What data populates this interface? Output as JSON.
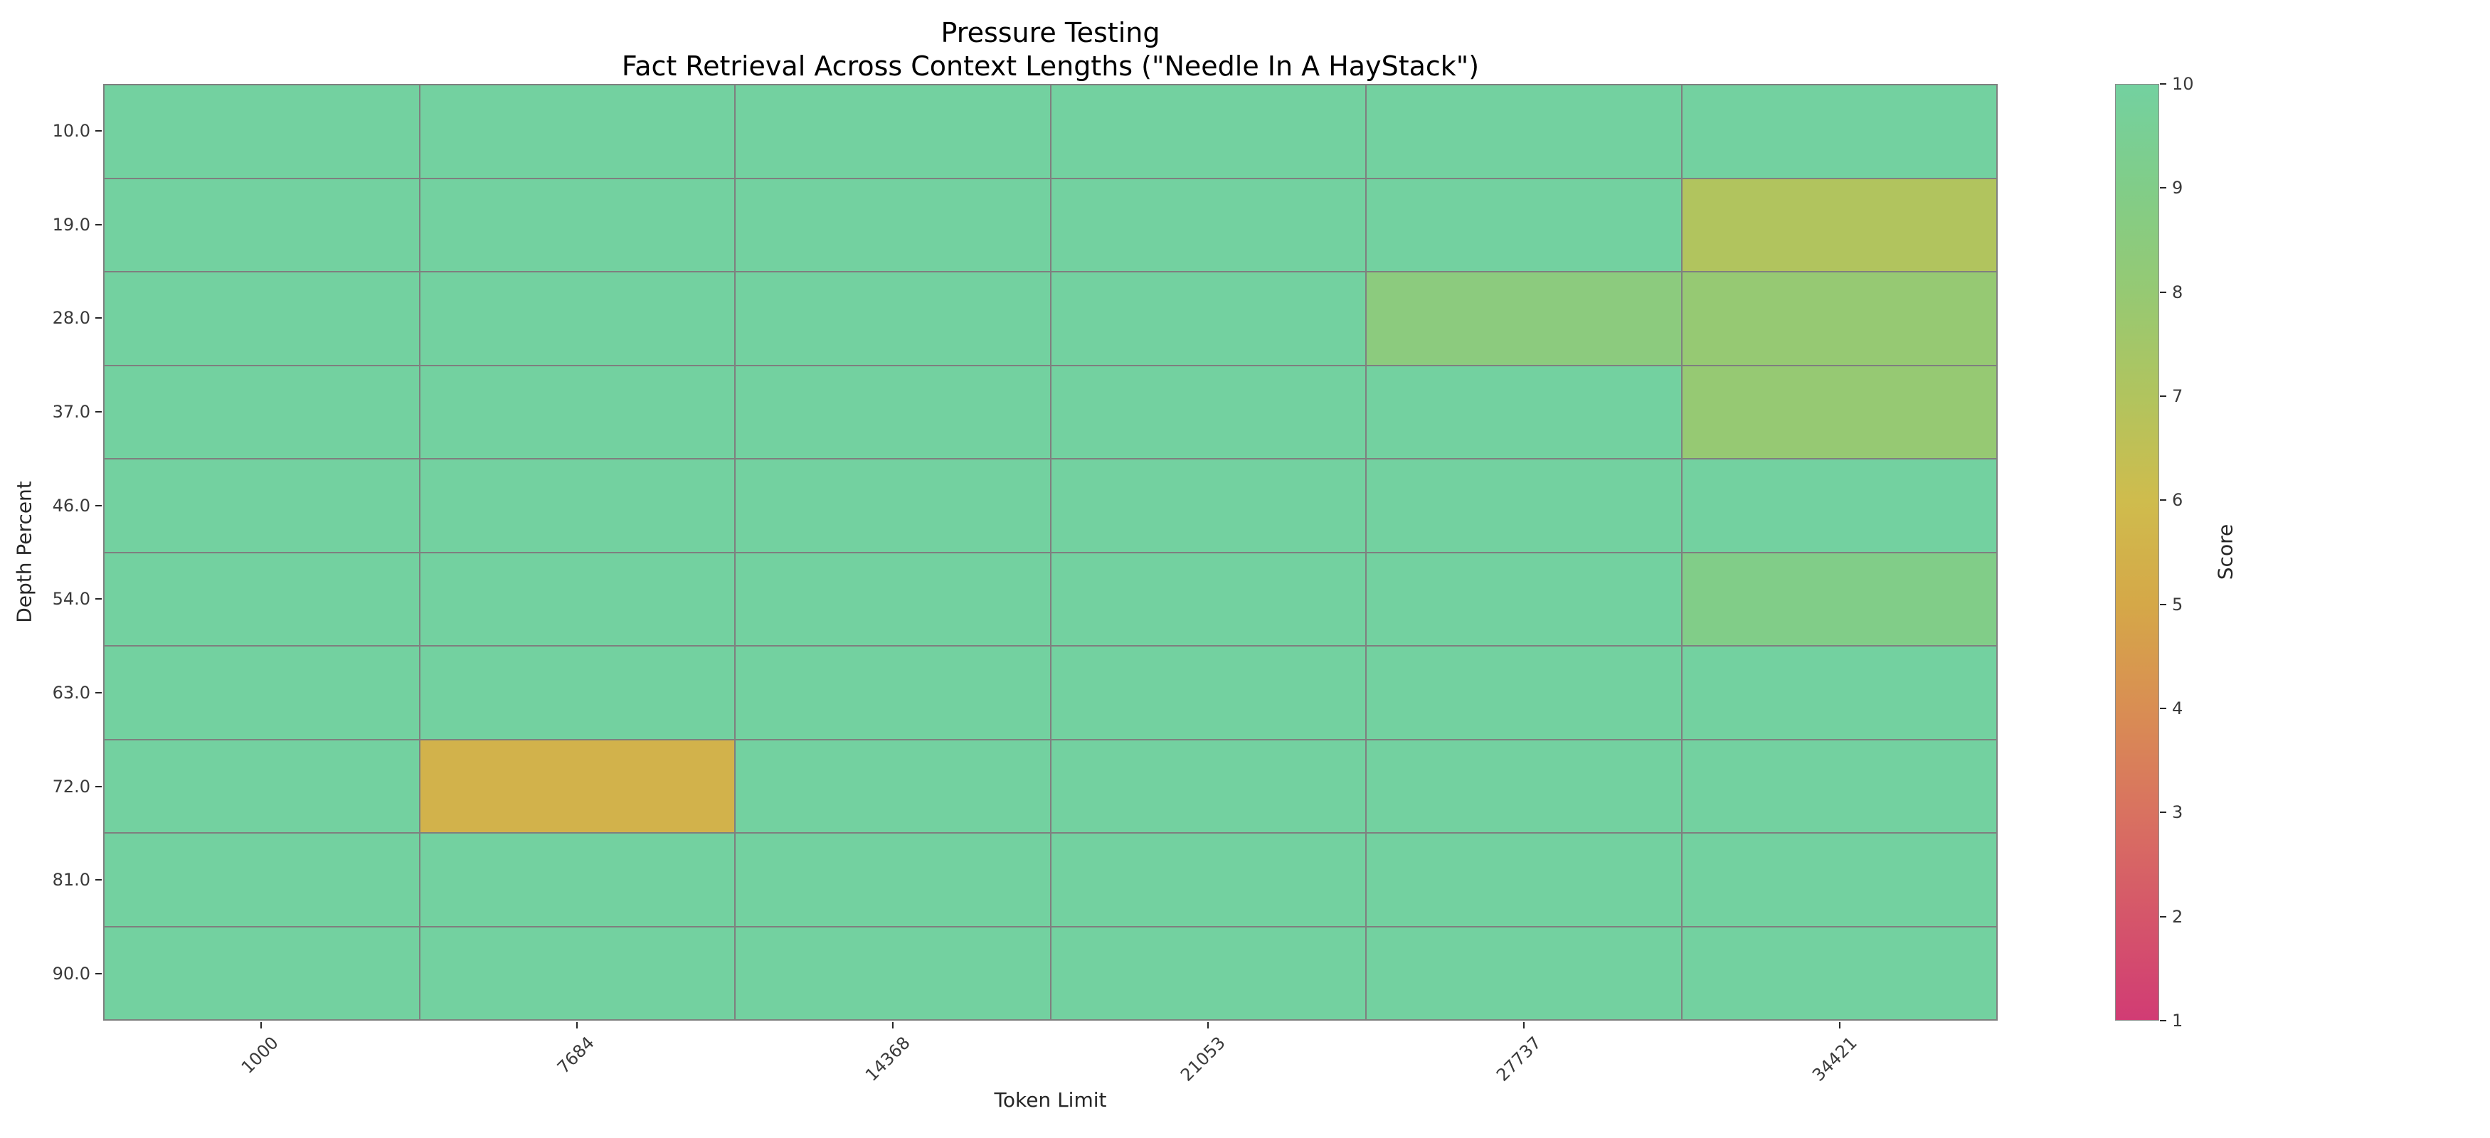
{
  "page": {
    "background_color": "#ffffff",
    "text_color": "#262626",
    "grid_line_color": "#7f7f7f"
  },
  "chart_data": {
    "type": "heatmap",
    "title": "Pressure Testing",
    "subtitle": "Fact Retrieval Across Context Lengths (\"Needle In A HayStack\")",
    "xlabel": "Token Limit",
    "ylabel": "Depth Percent",
    "x_categories": [
      "1000",
      "7684",
      "14368",
      "21053",
      "27737",
      "34421"
    ],
    "y_categories": [
      "10.0",
      "19.0",
      "28.0",
      "37.0",
      "46.0",
      "54.0",
      "63.0",
      "72.0",
      "81.0",
      "90.0"
    ],
    "values": [
      [
        10,
        10,
        10,
        10,
        10,
        10
      ],
      [
        10,
        10,
        10,
        10,
        10,
        7
      ],
      [
        10,
        10,
        10,
        10,
        8.5,
        8
      ],
      [
        10,
        10,
        10,
        10,
        10,
        8
      ],
      [
        10,
        10,
        10,
        10,
        10,
        10
      ],
      [
        10,
        10,
        10,
        10,
        10,
        9
      ],
      [
        10,
        10,
        10,
        10,
        10,
        10
      ],
      [
        10,
        5.5,
        10,
        10,
        10,
        10
      ],
      [
        10,
        10,
        10,
        10,
        10,
        10
      ],
      [
        10,
        10,
        10,
        10,
        10,
        10
      ]
    ],
    "colorbar": {
      "label": "Score",
      "min": 1,
      "max": 10,
      "ticks": [
        1,
        2,
        3,
        4,
        5,
        6,
        7,
        8,
        9,
        10
      ]
    },
    "colormap_stops": {
      "1": "#d13c74",
      "2": "#d5566a",
      "3": "#d97260",
      "4": "#d98e53",
      "5": "#d5a848",
      "6": "#cfbc4d",
      "7": "#b1c45e",
      "8": "#96c973",
      "9": "#81cd88",
      "10": "#73d1a0"
    },
    "grid": true,
    "legend_position": "colorbar-right"
  }
}
